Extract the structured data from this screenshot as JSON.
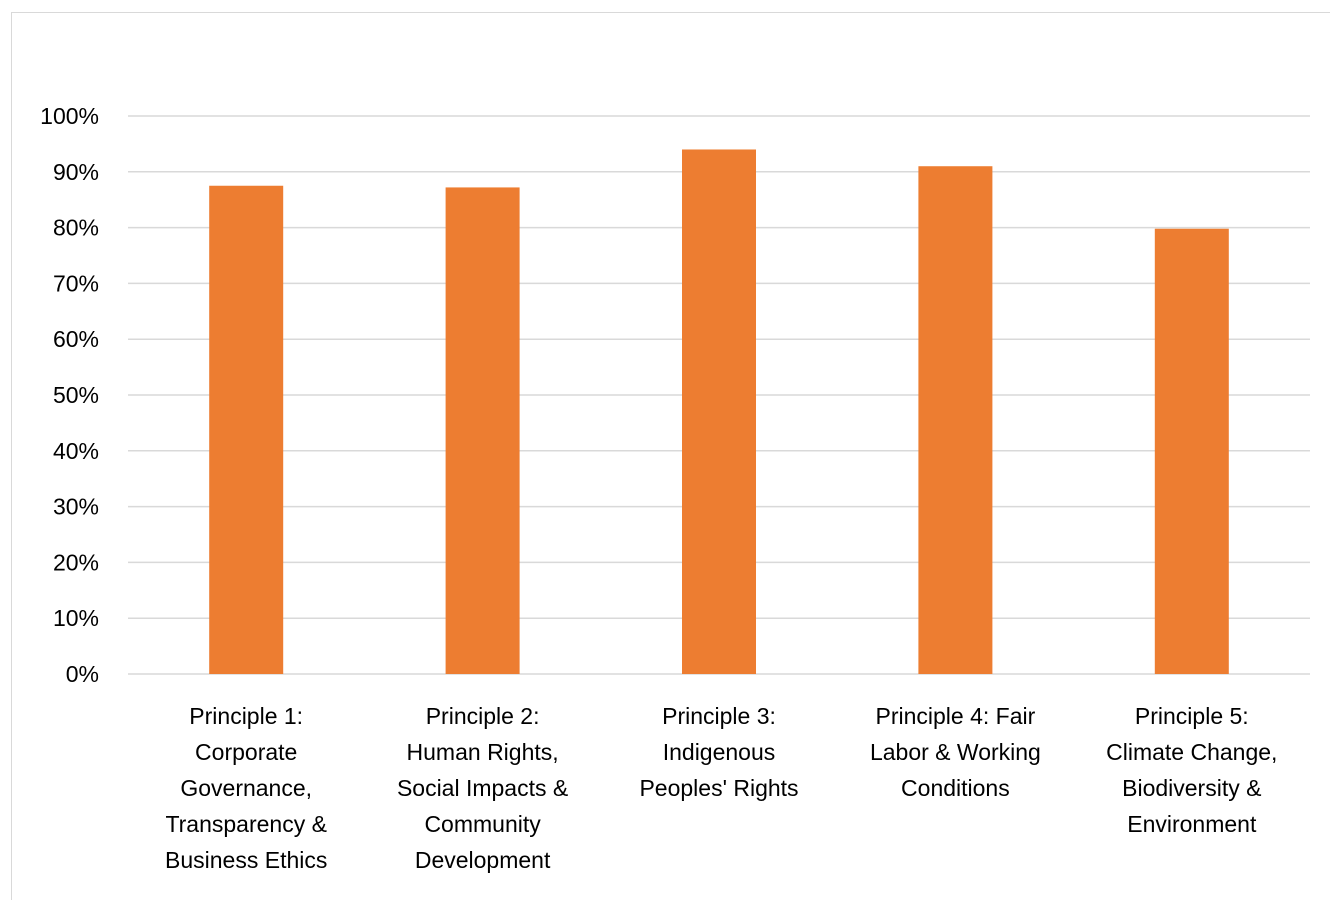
{
  "chart_data": {
    "type": "bar",
    "title": "",
    "xlabel": "",
    "ylabel": "",
    "ylim": [
      0,
      100
    ],
    "y_tick_labels": [
      "0%",
      "10%",
      "20%",
      "30%",
      "40%",
      "50%",
      "60%",
      "70%",
      "80%",
      "90%",
      "100%"
    ],
    "grid": true,
    "bar_color": "#ED7D31",
    "gridline_color": "#D9D9D9",
    "categories": [
      [
        "Principle 1:",
        "Corporate",
        "Governance,",
        "Transparency &",
        "Business Ethics"
      ],
      [
        "Principle 2:",
        "Human Rights,",
        "Social Impacts &",
        "Community",
        "Development"
      ],
      [
        "Principle 3:",
        "Indigenous",
        "Peoples' Rights"
      ],
      [
        "Principle 4: Fair",
        "Labor & Working",
        "Conditions"
      ],
      [
        "Principle 5:",
        "Climate Change,",
        "Biodiversity &",
        "Environment"
      ]
    ],
    "values": [
      87.5,
      87.2,
      94.0,
      91.0,
      79.8
    ]
  }
}
